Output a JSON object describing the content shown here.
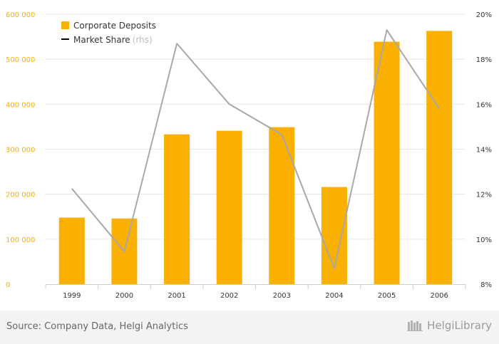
{
  "chart_data": {
    "type": "bar+line",
    "categories": [
      "1999",
      "2000",
      "2001",
      "2002",
      "2003",
      "2004",
      "2005",
      "2006"
    ],
    "series": [
      {
        "name": "Corporate Deposits",
        "type": "bar",
        "axis": "left",
        "values": [
          148000,
          146000,
          333000,
          341000,
          349000,
          216000,
          539000,
          563000
        ]
      },
      {
        "name": "Market Share",
        "axis_tag": "(rhs)",
        "type": "line",
        "axis": "right",
        "values": [
          12.25,
          9.45,
          18.7,
          16.0,
          14.65,
          8.7,
          19.3,
          15.8
        ]
      }
    ],
    "left_axis": {
      "min": 0,
      "max": 600000,
      "ticks": [
        0,
        100000,
        200000,
        300000,
        400000,
        500000,
        600000
      ],
      "tick_labels": [
        "0",
        "100 000",
        "200 000",
        "300 000",
        "400 000",
        "500 000",
        "600 000"
      ]
    },
    "right_axis": {
      "min": 8,
      "max": 20,
      "ticks": [
        8,
        10,
        12,
        14,
        16,
        18,
        20
      ],
      "tick_labels": [
        "8%",
        "10%",
        "12%",
        "14%",
        "16%",
        "18%",
        "20%"
      ]
    },
    "legend_position": "top-left",
    "grid": true,
    "colors": {
      "bar": "#f9b000",
      "line": "#a8a8a8",
      "left_tick": "#f9b000",
      "right_tick": "#333333",
      "legend_line": "#000000"
    }
  },
  "footer": {
    "source": "Source: Company Data, Helgi Analytics",
    "brand": "HelgiLibrary"
  }
}
